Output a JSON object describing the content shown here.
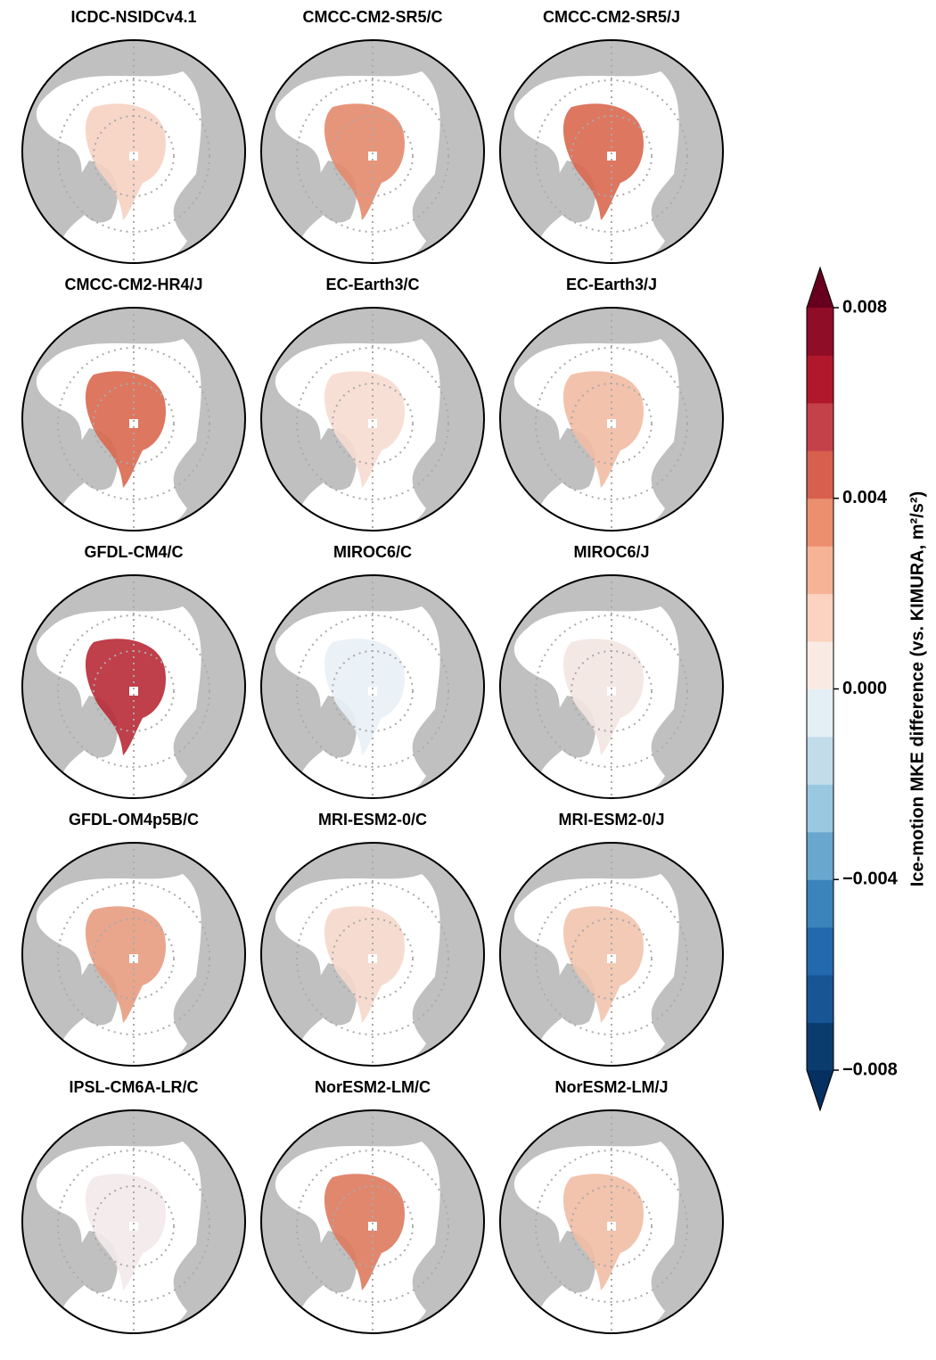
{
  "chart_data": {
    "type": "polar-map-grid",
    "panels": [
      {
        "title": "ICDC-NSIDCv4.1",
        "color": "#f6d2c2"
      },
      {
        "title": "CMCC-CM2-SR5/C",
        "color": "#e48a6c"
      },
      {
        "title": "CMCC-CM2-SR5/J",
        "color": "#d9684f"
      },
      {
        "title": "CMCC-CM2-HR4/J",
        "color": "#d9684f"
      },
      {
        "title": "EC-Earth3/C",
        "color": "#f7dcd0"
      },
      {
        "title": "EC-Earth3/J",
        "color": "#f2bba3"
      },
      {
        "title": "GFDL-CM4/C",
        "color": "#b82a36"
      },
      {
        "title": "MIROC6/C",
        "color": "#e8eff6"
      },
      {
        "title": "MIROC6/J",
        "color": "#f3e6e2"
      },
      {
        "title": "GFDL-OM4p5B/C",
        "color": "#e79c80"
      },
      {
        "title": "MRI-ESM2-0/C",
        "color": "#f5d8cb"
      },
      {
        "title": "MRI-ESM2-0/J",
        "color": "#f2c4ae"
      },
      {
        "title": "IPSL-CM6A-LR/C",
        "color": "#f3e9ea"
      },
      {
        "title": "NorESM2-LM/C",
        "color": "#de7a5e"
      },
      {
        "title": "NorESM2-LM/J",
        "color": "#f1bca4"
      }
    ],
    "colorbar": {
      "label": "Ice-motion MKE difference (vs. KIMURA, m²/s²)",
      "ylim": [
        -0.008,
        0.008
      ],
      "yticks": [
        0.008,
        0.004,
        {
          "value": 0,
          "label": "0.000"
        },
        {
          "value": -0.004,
          "label": "−0.004"
        },
        {
          "value": -0.008,
          "label": "−0.008"
        }
      ],
      "colors": [
        "#0b3c6e",
        "#175595",
        "#2369ad",
        "#3a84bb",
        "#6aa7cf",
        "#9ac8e0",
        "#c3dcea",
        "#e4eef5",
        "#f9ebe4",
        "#fbd3c0",
        "#f6b396",
        "#eb8f6f",
        "#d6604d",
        "#c4414a",
        "#b2182b",
        "#8f0d27"
      ],
      "under_color": "#053061",
      "over_color": "#67001f"
    }
  }
}
